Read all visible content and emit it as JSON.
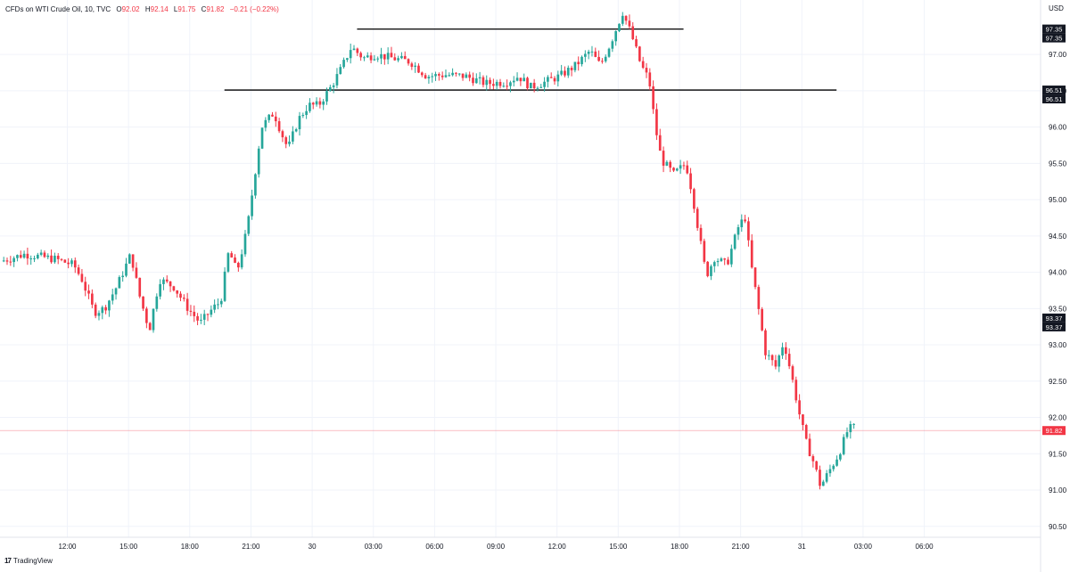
{
  "header": {
    "symbol": "CFDs on WTI Crude Oil, 10, TVC",
    "o_label": "O",
    "o_value": "92.02",
    "h_label": "H",
    "h_value": "92.14",
    "l_label": "L",
    "l_value": "91.75",
    "c_label": "C",
    "c_value": "91.82",
    "change": "−0.21 (−0.22%)"
  },
  "footer": {
    "logo_icon": "tradingview-logo-icon",
    "brand": "TradingView"
  },
  "colors": {
    "up": "#26a69a",
    "down": "#f23645",
    "grid": "#f0f3fa",
    "axis_text": "#131722",
    "label_bg": "#131722",
    "current": "#f23645"
  },
  "chart_data": {
    "type": "candlestick",
    "currency": "USD",
    "ylim": [
      90.35,
      97.75
    ],
    "y_ticks": [
      "97.00",
      "96.50",
      "96.00",
      "95.50",
      "95.00",
      "94.50",
      "94.00",
      "93.50",
      "93.00",
      "92.50",
      "92.00",
      "91.50",
      "91.00",
      "90.50"
    ],
    "x_ticks": [
      {
        "label": "12:00",
        "hour": 12
      },
      {
        "label": "15:00",
        "hour": 15
      },
      {
        "label": "18:00",
        "hour": 18
      },
      {
        "label": "21:00",
        "hour": 21
      },
      {
        "label": "30",
        "hour": 24
      },
      {
        "label": "03:00",
        "hour": 27
      },
      {
        "label": "06:00",
        "hour": 30
      },
      {
        "label": "09:00",
        "hour": 33
      },
      {
        "label": "12:00",
        "hour": 36
      },
      {
        "label": "15:00",
        "hour": 39
      },
      {
        "label": "18:00",
        "hour": 42
      },
      {
        "label": "21:00",
        "hour": 45
      },
      {
        "label": "31",
        "hour": 48
      },
      {
        "label": "03:00",
        "hour": 51
      },
      {
        "label": "06:00",
        "hour": 54
      }
    ],
    "x_range_hours": [
      8.7,
      59.7
    ],
    "bar_minutes": 10,
    "start_hour": 8.8,
    "price_labels": [
      {
        "value": 97.35,
        "label": "97.35"
      },
      {
        "value": 97.35,
        "label": "97.35"
      },
      {
        "value": 96.51,
        "label": "96.51"
      },
      {
        "value": 96.51,
        "label": "96.51"
      },
      {
        "value": 93.37,
        "label": "93.37"
      },
      {
        "value": 93.37,
        "label": "93.37"
      }
    ],
    "current_price": {
      "value": 91.82,
      "label": "91.82"
    },
    "hlines": [
      {
        "value": 97.35,
        "from_hour": 26.2,
        "to_hour": 42.2
      },
      {
        "value": 96.51,
        "from_hour": 19.7,
        "to_hour": 49.7
      }
    ],
    "path": [
      [
        8.8,
        94.15
      ],
      [
        10.0,
        94.25
      ],
      [
        11.5,
        94.18
      ],
      [
        12.4,
        94.1
      ],
      [
        12.8,
        93.9
      ],
      [
        13.4,
        93.45
      ],
      [
        13.9,
        93.5
      ],
      [
        14.5,
        93.8
      ],
      [
        15.2,
        94.25
      ],
      [
        15.6,
        93.7
      ],
      [
        16.1,
        93.2
      ],
      [
        16.6,
        93.9
      ],
      [
        17.3,
        93.8
      ],
      [
        18.0,
        93.5
      ],
      [
        18.6,
        93.3
      ],
      [
        19.2,
        93.5
      ],
      [
        19.6,
        93.6
      ],
      [
        20.0,
        94.3
      ],
      [
        20.4,
        94.0
      ],
      [
        20.9,
        94.6
      ],
      [
        21.3,
        95.4
      ],
      [
        21.6,
        96.0
      ],
      [
        22.2,
        96.2
      ],
      [
        22.6,
        95.9
      ],
      [
        22.9,
        95.7
      ],
      [
        23.4,
        96.1
      ],
      [
        23.9,
        96.3
      ],
      [
        24.4,
        96.3
      ],
      [
        25.0,
        96.55
      ],
      [
        25.5,
        96.8
      ],
      [
        26.0,
        97.1
      ],
      [
        26.6,
        96.95
      ],
      [
        27.2,
        97.0
      ],
      [
        28.0,
        96.95
      ],
      [
        28.9,
        96.9
      ],
      [
        29.7,
        96.7
      ],
      [
        30.6,
        96.72
      ],
      [
        31.6,
        96.7
      ],
      [
        32.6,
        96.6
      ],
      [
        33.6,
        96.62
      ],
      [
        34.2,
        96.7
      ],
      [
        34.8,
        96.55
      ],
      [
        35.5,
        96.62
      ],
      [
        36.2,
        96.7
      ],
      [
        37.0,
        96.85
      ],
      [
        37.7,
        97.05
      ],
      [
        38.2,
        96.85
      ],
      [
        38.7,
        97.15
      ],
      [
        39.3,
        97.58
      ],
      [
        39.7,
        97.3
      ],
      [
        40.2,
        96.85
      ],
      [
        40.6,
        96.65
      ],
      [
        40.9,
        96.0
      ],
      [
        41.2,
        95.55
      ],
      [
        41.8,
        95.35
      ],
      [
        42.4,
        95.5
      ],
      [
        42.7,
        95.1
      ],
      [
        43.0,
        94.6
      ],
      [
        43.4,
        93.95
      ],
      [
        43.8,
        94.2
      ],
      [
        44.4,
        94.1
      ],
      [
        45.0,
        94.65
      ],
      [
        45.3,
        94.75
      ],
      [
        45.6,
        94.1
      ],
      [
        45.9,
        93.6
      ],
      [
        46.3,
        92.9
      ],
      [
        46.8,
        92.7
      ],
      [
        47.2,
        93.05
      ],
      [
        47.6,
        92.55
      ],
      [
        48.0,
        92.0
      ],
      [
        48.3,
        91.65
      ],
      [
        48.7,
        91.35
      ],
      [
        49.0,
        91.05
      ],
      [
        49.5,
        91.3
      ],
      [
        49.9,
        91.5
      ],
      [
        50.3,
        91.8
      ],
      [
        50.5,
        91.86
      ]
    ]
  }
}
